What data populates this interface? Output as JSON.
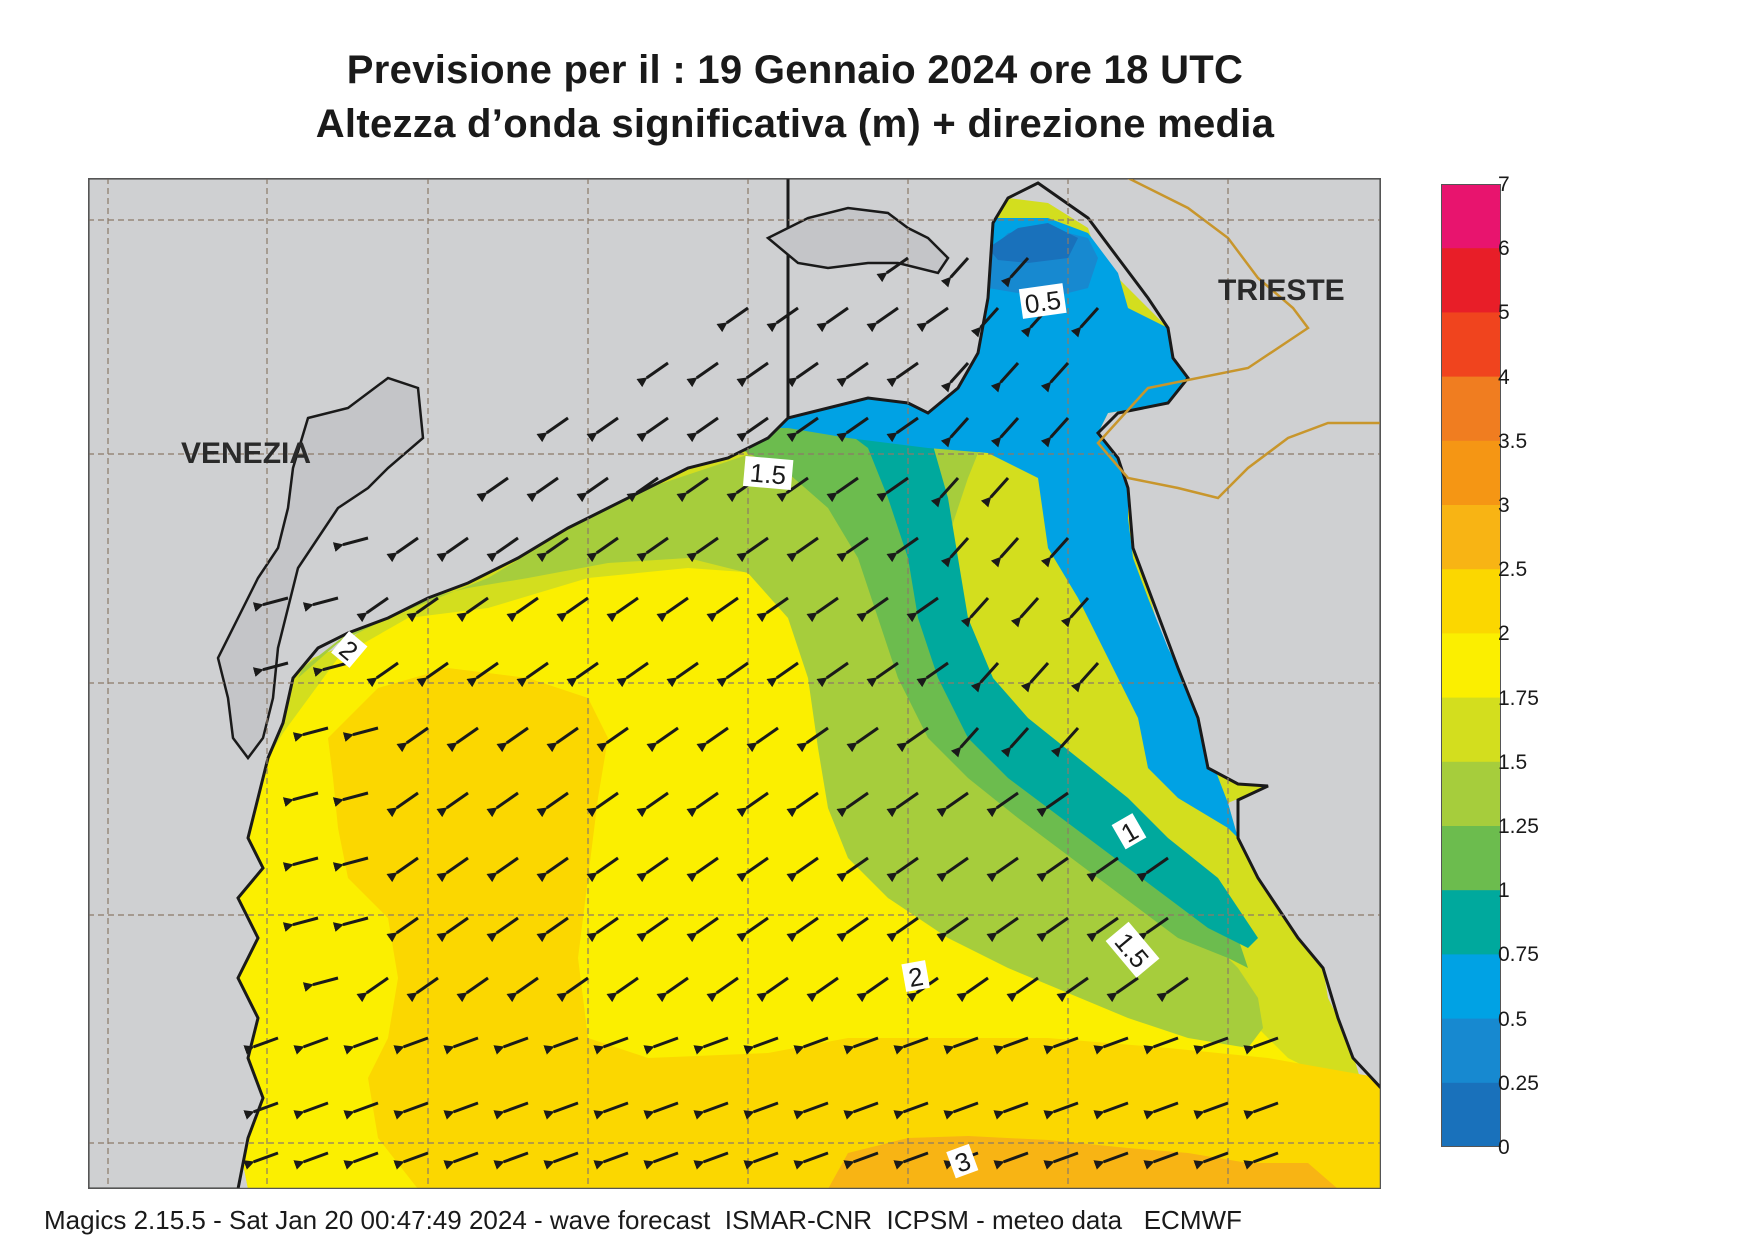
{
  "title": {
    "line1": "Previsione per il  :  19  Gennaio  2024   ore 18 UTC",
    "line2": "Altezza d’onda significativa (m) + direzione media"
  },
  "map_labels": {
    "venezia": "VENEZIA",
    "trieste": "TRIESTE"
  },
  "contour_labels": [
    "0.5",
    "1.5",
    "2",
    "1",
    "1.5",
    "2",
    "3"
  ],
  "legend": {
    "levels": [
      "7",
      "6",
      "5",
      "4",
      "3.5",
      "3",
      "2.5",
      "2",
      "1.75",
      "1.5",
      "1.25",
      "1",
      "0.75",
      "0.5",
      "0.25",
      "0"
    ],
    "colors": [
      "#e8146e",
      "#e81e28",
      "#f0441e",
      "#f07d20",
      "#f59614",
      "#f8b414",
      "#fbd700",
      "#fbef00",
      "#d3de1e",
      "#a6cd3c",
      "#6cbc4e",
      "#00a99d",
      "#00a2e4",
      "#1789d0",
      "#1971bb",
      "#0b5aaa"
    ]
  },
  "colors": {
    "land": "#cfd0d2",
    "coast": "#1a1a1a",
    "border": "#c8962c",
    "grid": "#8c7a68",
    "arrow": "#1a1a1a"
  },
  "wave_direction": "SW",
  "footer": "Magics 2.15.5 - Sat Jan 20 00:47:49 2024 - wave forecast  ISMAR-CNR  ICPSM - meteo data   ECMWF"
}
